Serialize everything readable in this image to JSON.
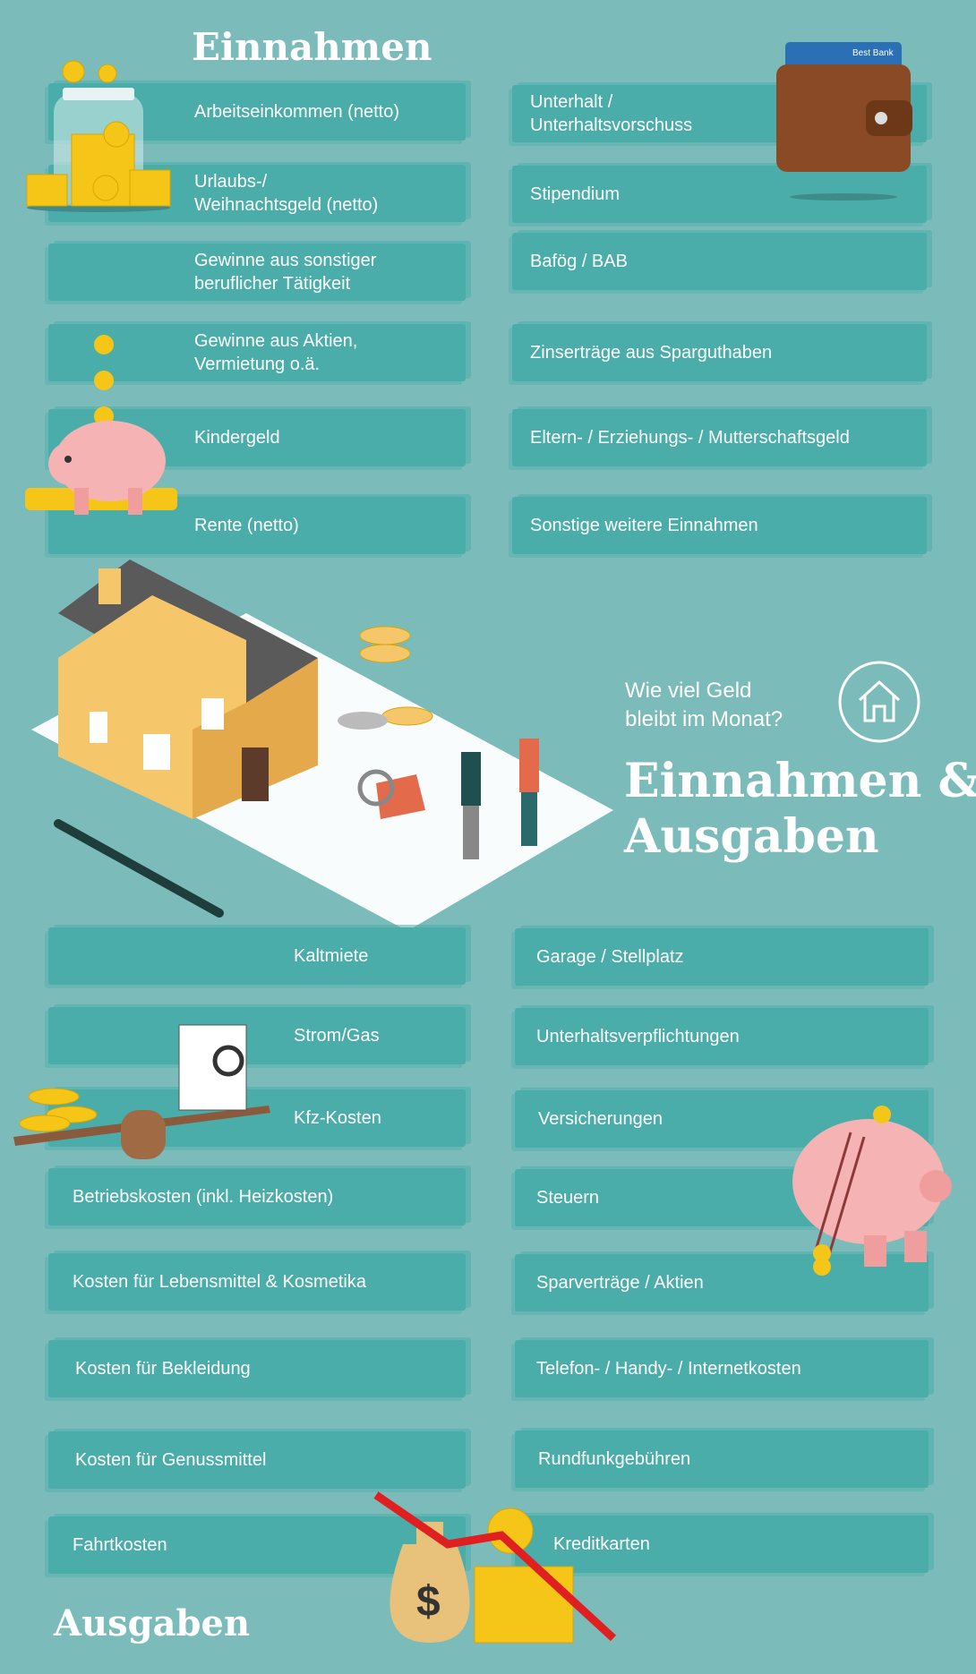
{
  "income": {
    "title": "Einnahmen",
    "left": [
      "Arbeitseinkommen (netto)",
      "Urlaubs-/\nWeihnachtsgeld (netto)",
      "Gewinne aus sonstiger\nberuflicher Tätigkeit",
      "Gewinne aus Aktien,\nVermietung o.ä.",
      "Kindergeld",
      "Rente (netto)"
    ],
    "right": [
      "Unterhalt /\nUnterhaltsvorschuss",
      "Stipendium",
      "Bafög / BAB",
      "Zinserträge aus Sparguthaben",
      "Eltern- / Erziehungs- / Mutterschaftsgeld",
      "Sonstige weitere Einnahmen"
    ]
  },
  "hero": {
    "subtitle": "Wie viel Geld\nbleibt im Monat?",
    "title": "Einnahmen &\nAusgaben",
    "icon": "house-icon",
    "wallet_card_text": "Best Bank"
  },
  "expenses": {
    "title": "Ausgaben",
    "left": [
      "Kaltmiete",
      "Strom/Gas",
      "Kfz-Kosten",
      "Betriebskosten (inkl. Heizkosten)",
      "Kosten für Lebensmittel & Kosmetika",
      "Kosten für Bekleidung",
      "Kosten für Genussmittel",
      "Fahrtkosten"
    ],
    "right": [
      "Garage / Stellplatz",
      "Unterhaltsverpflichtungen",
      "Versicherungen",
      "Steuern",
      "Sparverträge / Aktien",
      "Telefon- / Handy- / Internetkosten",
      "Rundfunkgebühren",
      "Kreditkarten"
    ]
  },
  "colors": {
    "background": "#7bbcbb",
    "band": "#4aada9",
    "text": "#ffffff",
    "coin": "#f5c518"
  }
}
